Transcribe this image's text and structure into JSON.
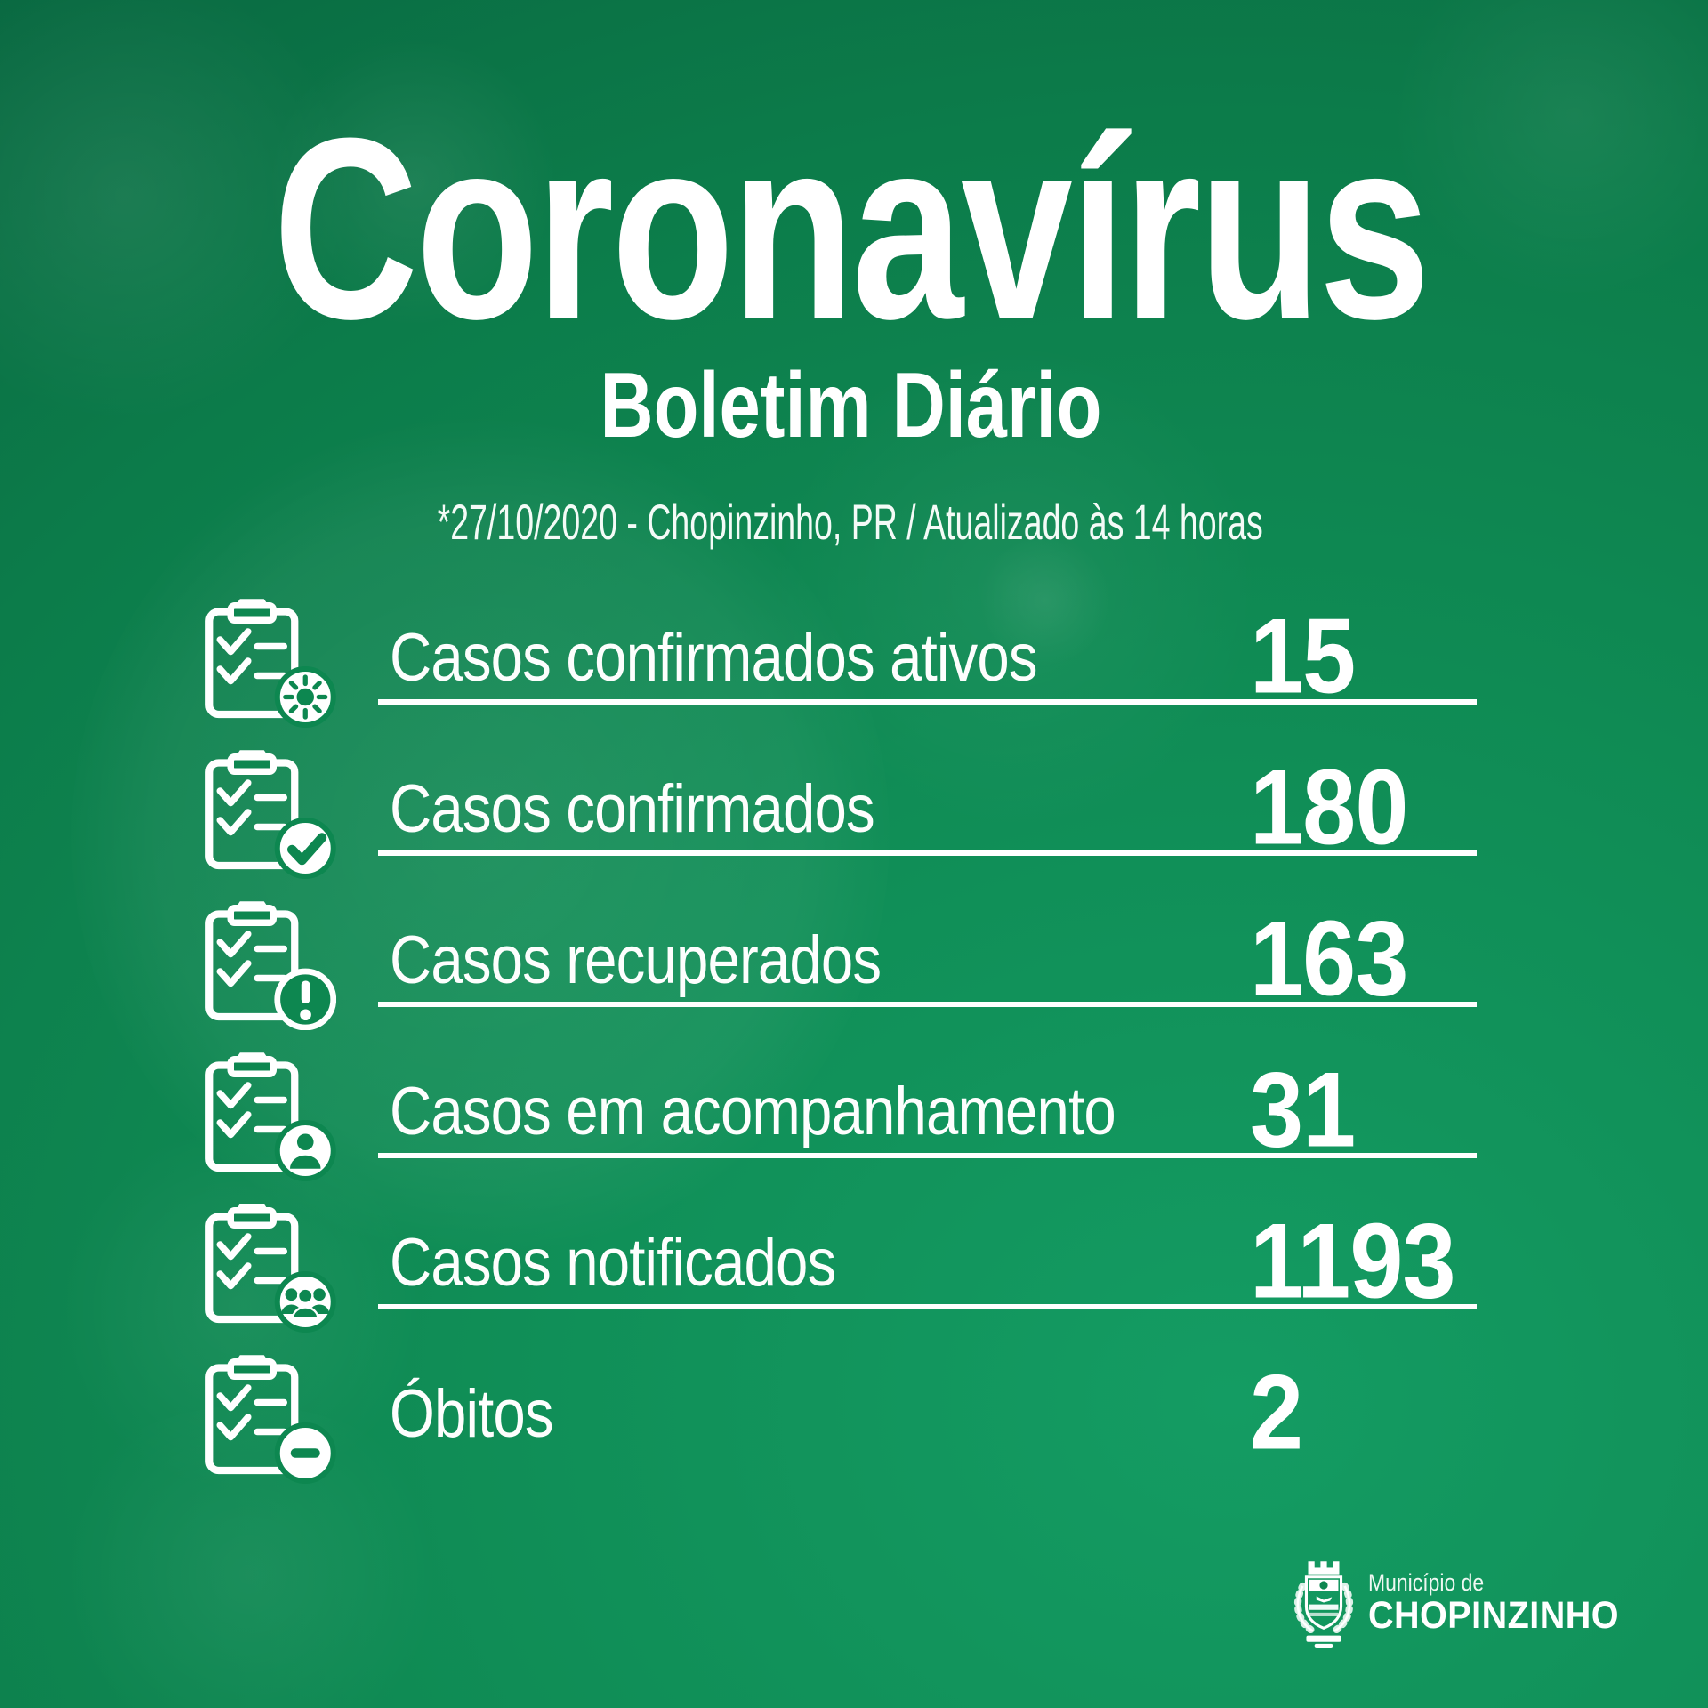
{
  "header": {
    "title": "Coronavírus",
    "subtitle": "Boletim Diário",
    "dateline": "*27/10/2020 - Chopinzinho, PR / Atualizado às 14 horas"
  },
  "stats": [
    {
      "label": "Casos confirmados ativos",
      "value": "15",
      "icon": "clipboard-sun-icon"
    },
    {
      "label": "Casos confirmados",
      "value": "180",
      "icon": "clipboard-check-icon"
    },
    {
      "label": "Casos recuperados",
      "value": "163",
      "icon": "clipboard-exclamation-icon"
    },
    {
      "label": "Casos em acompanhamento",
      "value": "31",
      "icon": "clipboard-person-icon"
    },
    {
      "label": "Casos notificados",
      "value": "1193",
      "icon": "clipboard-people-icon"
    },
    {
      "label": "Óbitos",
      "value": "2",
      "icon": "clipboard-minus-icon"
    }
  ],
  "footer": {
    "org_small": "Município de",
    "org_name": "CHOPINZINHO",
    "logo": "chopinzinho-coat-of-arms"
  },
  "colors": {
    "title_cream": "#f3edb7",
    "text_white": "#ffffff",
    "green_dark": "#075c38",
    "green_light": "#149c63",
    "icon_green": "#0d8750"
  }
}
